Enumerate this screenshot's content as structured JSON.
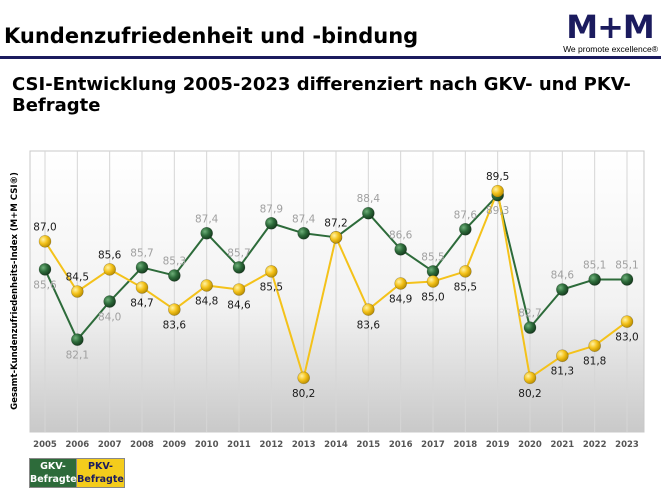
{
  "header": {
    "title": "Kundenzufriedenheit und -bindung",
    "logo_text": "M+M",
    "logo_tagline": "We promote excellence®"
  },
  "subtitle": "CSI-Entwicklung 2005-2023 differenziert nach GKV- und PKV-Befragte",
  "legend": {
    "gkv_label": "GKV-\nBefragte",
    "pkv_label": "PKV-\nBefragte"
  },
  "colors": {
    "gkv": "#2d6b3a",
    "pkv": "#f4c21a",
    "gkv_label": "#a0a0a0",
    "pkv_label": "#1a1a1a"
  },
  "chart_data": {
    "type": "line",
    "ylabel": "Gesamt-Kundenzufriedenheits-Index (M+M CSI®)",
    "xlabel": "",
    "x": [
      "2005",
      "2006",
      "2007",
      "2008",
      "2009",
      "2010",
      "2011",
      "2012",
      "2013",
      "2014",
      "2015",
      "2016",
      "2017",
      "2018",
      "2019",
      "2020",
      "2021",
      "2022",
      "2023"
    ],
    "ylim": [
      77.5,
      91.5
    ],
    "grid": true,
    "series": [
      {
        "name": "GKV-Befragte",
        "values": [
          85.6,
          82.1,
          84.0,
          85.7,
          85.3,
          87.4,
          85.7,
          87.9,
          87.4,
          87.2,
          88.4,
          86.6,
          85.5,
          87.6,
          89.3,
          82.7,
          84.6,
          85.1,
          85.1
        ],
        "labels": [
          "85,6",
          "82,1",
          "84,0",
          "85,7",
          "85,3",
          "87,4",
          "85,7",
          "87,9",
          "87,4",
          "",
          "88,4",
          "86,6",
          "85,5",
          "87,6",
          "89,3",
          "82,7",
          "84,6",
          "85,1",
          "85,1"
        ]
      },
      {
        "name": "PKV-Befragte",
        "values": [
          87.0,
          84.5,
          85.6,
          84.7,
          83.6,
          84.8,
          84.6,
          85.5,
          80.2,
          87.2,
          83.6,
          84.9,
          85.0,
          85.5,
          89.5,
          80.2,
          81.3,
          81.8,
          83.0
        ],
        "labels": [
          "87,0",
          "84,5",
          "85,6",
          "84,7",
          "83,6",
          "84,8",
          "84,6",
          "85,5",
          "80,2",
          "87,2",
          "83,6",
          "84,9",
          "85,0",
          "85,5",
          "89,5",
          "80,2",
          "81,3",
          "81,8",
          "83,0"
        ]
      }
    ]
  }
}
